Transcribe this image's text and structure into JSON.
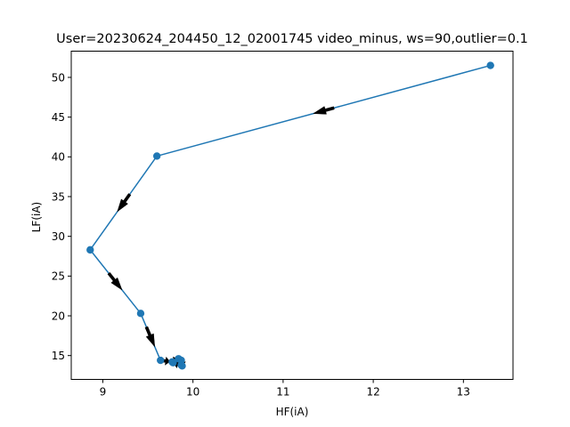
{
  "chart_data": {
    "type": "line",
    "title": "User=20230624_204450_12_02001745 video_minus, ws=90,outlier=0.1",
    "xlabel": "HF(iA)",
    "ylabel": "LF(iA)",
    "xlim": [
      8.65,
      13.55
    ],
    "ylim": [
      12.0,
      53.3
    ],
    "xticks": [
      9,
      10,
      11,
      12,
      13
    ],
    "yticks": [
      15,
      20,
      25,
      30,
      35,
      40,
      45,
      50
    ],
    "grid": false,
    "series": [
      {
        "color": "#1f77b4",
        "marker": "circle",
        "direction_arrows": true,
        "arrow_color": "#000000",
        "points": [
          {
            "x": 13.3,
            "y": 51.5
          },
          {
            "x": 9.6,
            "y": 40.1
          },
          {
            "x": 8.86,
            "y": 28.3
          },
          {
            "x": 9.42,
            "y": 20.3
          },
          {
            "x": 9.64,
            "y": 14.4
          },
          {
            "x": 9.77,
            "y": 14.2
          },
          {
            "x": 9.84,
            "y": 14.6
          },
          {
            "x": 9.87,
            "y": 13.8
          },
          {
            "x": 9.78,
            "y": 14.1
          },
          {
            "x": 9.87,
            "y": 14.4
          },
          {
            "x": 9.88,
            "y": 13.7
          }
        ]
      }
    ]
  }
}
